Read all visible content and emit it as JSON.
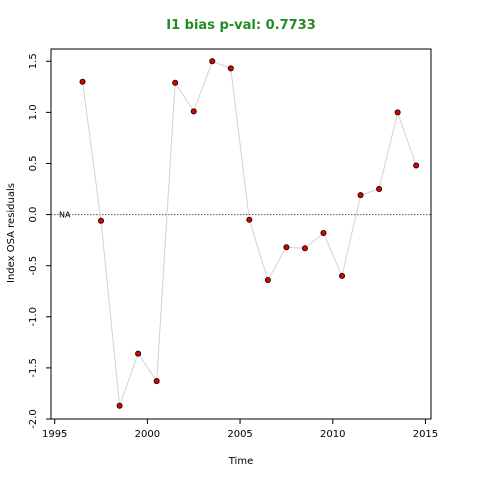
{
  "chart_data": {
    "type": "line",
    "title": "I1 bias p-val: 0.7733",
    "xlabel": "Time",
    "ylabel": "Index OSA residuals",
    "xlim": [
      1994.8,
      2015.3
    ],
    "ylim": [
      -2.0,
      1.62
    ],
    "x_ticks": [
      1995,
      2000,
      2005,
      2010,
      2015
    ],
    "y_ticks": [
      -2.0,
      -1.5,
      -1.0,
      -0.5,
      0.0,
      0.5,
      1.0,
      1.5
    ],
    "y_tick_labels": [
      "-2.0",
      "-1.5",
      "-1.0",
      "-0.5",
      "0.0",
      "0.5",
      "1.0",
      "1.5"
    ],
    "reference_line": {
      "y": 0,
      "label": "NA",
      "style": "dotted"
    },
    "series": [
      {
        "x": [
          1996.5,
          1997.5,
          1998.5,
          1999.5,
          2000.5,
          2001.5,
          2002.5,
          2003.5,
          2004.5,
          2005.5,
          2006.5,
          2007.5,
          2008.5,
          2009.5,
          2010.5,
          2011.5,
          2012.5,
          2013.5,
          2014.5
        ],
        "y": [
          1.3,
          -0.06,
          -1.87,
          -1.36,
          -1.63,
          1.29,
          1.01,
          1.5,
          1.43,
          -0.05,
          -0.64,
          -0.32,
          -0.33,
          -0.18,
          -0.6,
          0.19,
          0.25,
          1.0,
          0.48
        ]
      }
    ],
    "colors": {
      "title": "#228B22",
      "point_fill": "#E00000",
      "point_stroke": "#000000",
      "line": "#D3D3D3",
      "reference_line": "#555555",
      "axis": "#000000"
    },
    "grid": false
  }
}
